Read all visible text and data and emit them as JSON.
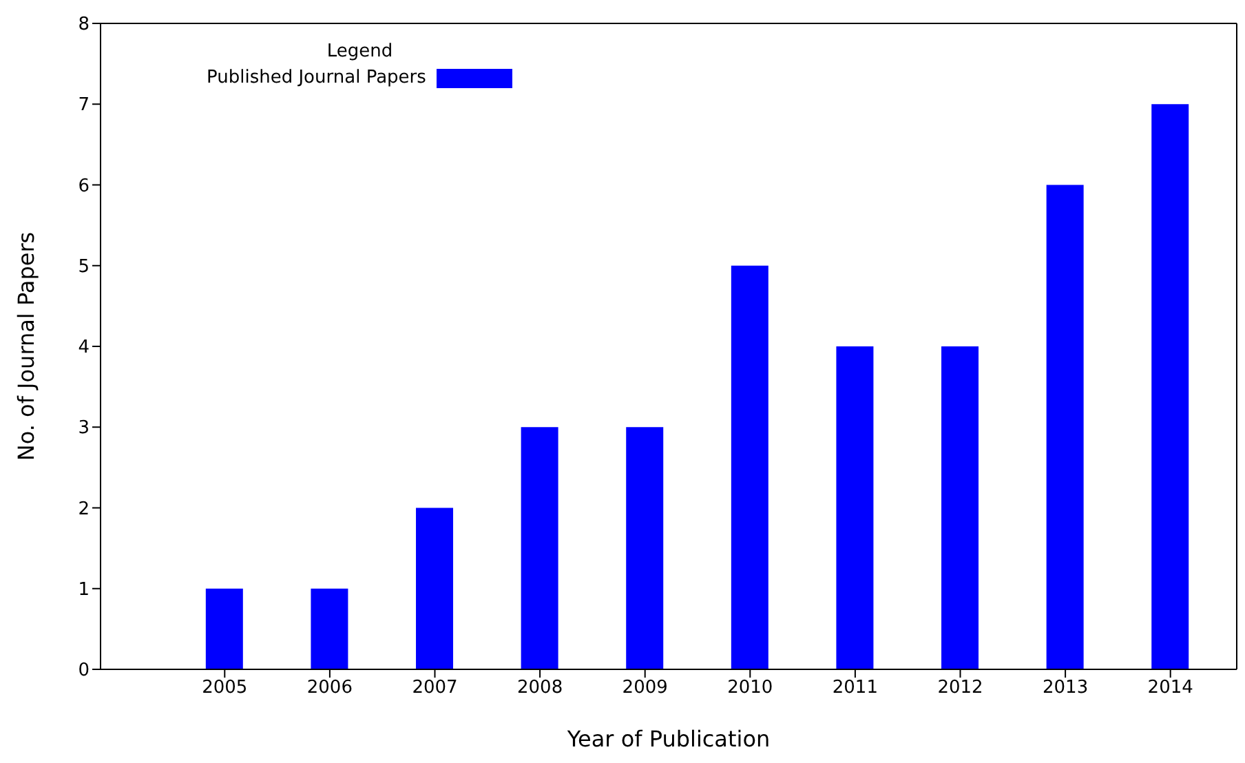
{
  "chart_data": {
    "type": "bar",
    "xlabel": "Year of Publication",
    "ylabel": "No. of Journal Papers",
    "legend_title": "Legend",
    "categories": [
      "2005",
      "2006",
      "2007",
      "2008",
      "2009",
      "2010",
      "2011",
      "2012",
      "2013",
      "2014"
    ],
    "series": [
      {
        "name": "Published Journal Papers",
        "color": "#0000ff",
        "values": [
          1,
          1,
          2,
          3,
          3,
          5,
          4,
          4,
          6,
          7
        ]
      }
    ],
    "ylim": [
      0,
      8
    ],
    "yticks": [
      0,
      1,
      2,
      3,
      4,
      5,
      6,
      7,
      8
    ],
    "legend": "top left"
  }
}
